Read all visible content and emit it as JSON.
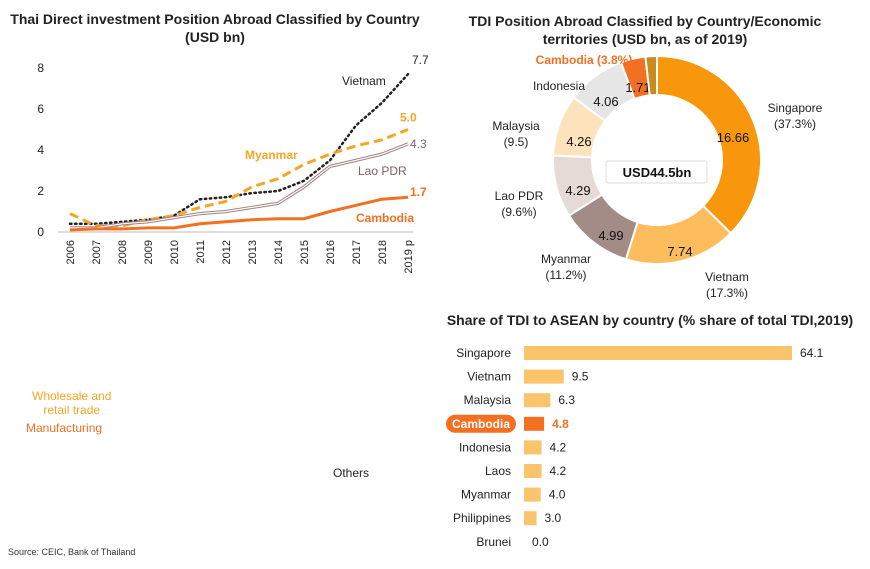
{
  "titles": {
    "line": "Thai Direct investment Position Abroad Classified by Country\n(USD bn)",
    "donut": "TDI Position Abroad Classified by Country/Economic\nterritories (USD bn, as of 2019)",
    "bar": "Share of TDI to ASEAN by country (% share of total TDI,2019)"
  },
  "source": "Source: CEIC, Bank of Thailand",
  "side_labels": {
    "wholesale": "Wholesale and\nretail trade",
    "manufacturing": "Manufacturing",
    "others": "Others"
  },
  "colors": {
    "vietnam": "#222222",
    "myanmar": "#F5A623",
    "lao": "#A08080",
    "cambodia": "#F36F21",
    "bar": "#F9C46B",
    "cambodia_bar": "#F36F21"
  },
  "chart_data": [
    {
      "type": "line",
      "x": [
        "2006",
        "2007",
        "2008",
        "2009",
        "2010",
        "2011",
        "2012",
        "2013",
        "2014",
        "2015",
        "2016",
        "2017",
        "2018",
        "2019 p"
      ],
      "ylim": [
        0,
        8
      ],
      "yticks": [
        0,
        2,
        4,
        6,
        8
      ],
      "series": [
        {
          "name": "Vietnam",
          "end_label": "7.7",
          "values": [
            0.4,
            0.4,
            0.5,
            0.6,
            0.8,
            1.6,
            1.7,
            1.9,
            2.0,
            2.5,
            3.5,
            5.2,
            6.3,
            7.7
          ]
        },
        {
          "name": "Myanmar",
          "end_label": "5.0",
          "values": [
            0.9,
            0.3,
            0.3,
            0.6,
            0.8,
            1.2,
            1.5,
            2.2,
            2.6,
            3.3,
            3.8,
            4.2,
            4.5,
            5.0
          ]
        },
        {
          "name": "Lao PDR",
          "end_label": "4.3",
          "values": [
            0.2,
            0.2,
            0.4,
            0.5,
            0.7,
            0.9,
            1.0,
            1.2,
            1.4,
            2.2,
            3.2,
            3.5,
            3.8,
            4.3
          ]
        },
        {
          "name": "Cambodia",
          "end_label": "1.7",
          "values": [
            0.1,
            0.15,
            0.15,
            0.2,
            0.2,
            0.4,
            0.5,
            0.6,
            0.65,
            0.65,
            1.0,
            1.3,
            1.6,
            1.7
          ]
        }
      ]
    },
    {
      "type": "pie",
      "center_label": "USD44.5bn",
      "slices": [
        {
          "name": "Singapore",
          "pct": "(37.3%)",
          "value": 16.66,
          "label": "16.66",
          "color": "#F9970C"
        },
        {
          "name": "Vietnam",
          "pct": "(17.3%)",
          "value": 7.74,
          "label": "7.74",
          "color": "#FDBD5C"
        },
        {
          "name": "Myanmar",
          "pct": "(11.2%)",
          "value": 4.99,
          "label": "4.99",
          "color": "#A38B86"
        },
        {
          "name": "Lao PDR",
          "pct": "(9.6%)",
          "value": 4.29,
          "label": "4.29",
          "color": "#E6DAD6"
        },
        {
          "name": "Malaysia",
          "pct": "(9.5)",
          "value": 4.26,
          "label": "4.26",
          "color": "#FCE3BB"
        },
        {
          "name": "Indonesia",
          "pct": "",
          "value": 4.06,
          "label": "4.06",
          "color": "#E6E6E6"
        },
        {
          "name": "Cambodia",
          "pct": "(3.8%)",
          "value": 1.71,
          "label": "1.71",
          "color": "#F36F21"
        },
        {
          "name": "",
          "pct": "",
          "value": 0.79,
          "label": "",
          "color": "#C98A1E"
        }
      ],
      "callout": "Cambodia (3.8%)"
    },
    {
      "type": "bar",
      "orientation": "horizontal",
      "categories": [
        "Singapore",
        "Vietnam",
        "Malaysia",
        "Cambodia",
        "Indonesia",
        "Laos",
        "Myanmar",
        "Philippines",
        "Brunei"
      ],
      "values": [
        64.1,
        9.5,
        6.3,
        4.8,
        4.2,
        4.2,
        4.0,
        3.0,
        0.0
      ],
      "labels": [
        "64.1",
        "9.5",
        "6.3",
        "4.8",
        "4.2",
        "4.2",
        "4.0",
        "3.0",
        "0.0"
      ],
      "highlight": "Cambodia"
    }
  ]
}
